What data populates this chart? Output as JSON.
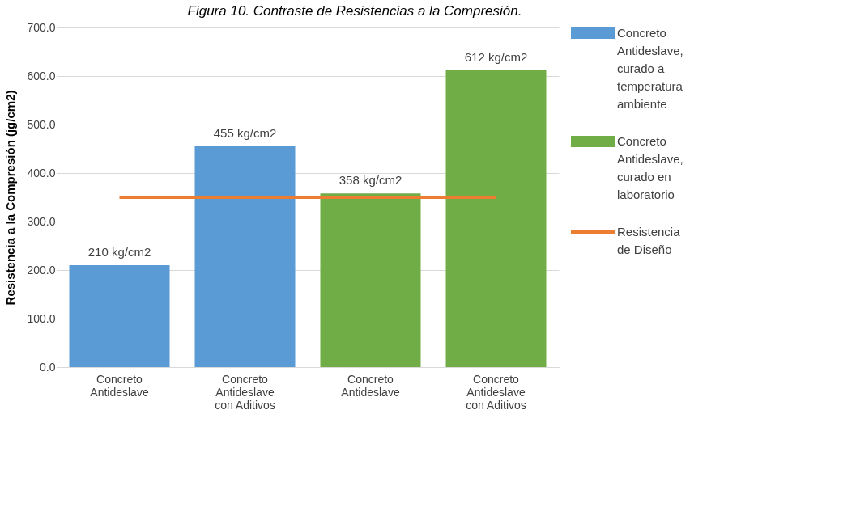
{
  "chart_data": {
    "type": "bar",
    "title": "Figura 10. Contraste de Resistencias a la Compresión.",
    "ylabel": "Resistencia a la Compresión (jg/cm2)",
    "categories": [
      "Concreto Antideslave",
      "Concreto Antideslave con Aditivos",
      "Concreto Antideslave",
      "Concreto Antideslave con Aditivos"
    ],
    "series": [
      {
        "name": "Concreto Antideslave, curado a temperatura ambiente",
        "color": "#5b9bd5",
        "values": [
          210,
          455,
          null,
          null
        ],
        "value_labels": [
          "210 kg/cm2",
          "455 kg/cm2",
          null,
          null
        ]
      },
      {
        "name": "Concreto Antideslave, curado en laboratorio",
        "color": "#70ad47",
        "values": [
          null,
          null,
          358,
          612
        ],
        "value_labels": [
          null,
          null,
          "358 kg/cm2",
          "612 kg/cm2"
        ]
      },
      {
        "name": "Resistencia de Diseño",
        "type": "line",
        "color": "#ed7d31",
        "values": [
          350,
          350,
          350,
          350
        ]
      }
    ],
    "ylim": [
      0,
      700
    ],
    "yticks": [
      {
        "value": 0,
        "label": "0.0"
      },
      {
        "value": 100,
        "label": "100.0"
      },
      {
        "value": 200,
        "label": "200.0"
      },
      {
        "value": 300,
        "label": "300.0"
      },
      {
        "value": 400,
        "label": "400.0"
      },
      {
        "value": 500,
        "label": "500.0"
      },
      {
        "value": 600,
        "label": "600.0"
      },
      {
        "value": 700,
        "label": "700.0"
      }
    ],
    "grid": "y",
    "legend": "right"
  }
}
